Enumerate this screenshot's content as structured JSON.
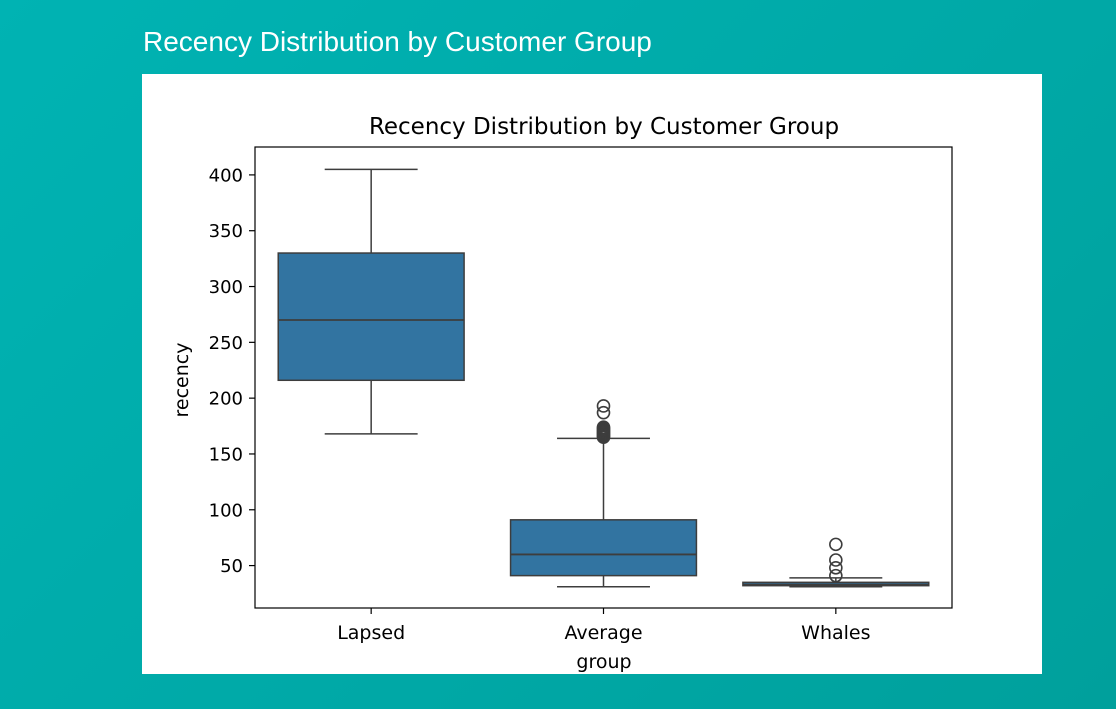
{
  "slide": {
    "title": "Recency Distribution by Customer Group"
  },
  "chart_data": {
    "type": "box",
    "title": "Recency Distribution by Customer Group",
    "xlabel": "group",
    "ylabel": "recency",
    "categories": [
      "Lapsed",
      "Average",
      "Whales"
    ],
    "ylim": [
      12,
      425
    ],
    "yticks": [
      50,
      100,
      150,
      200,
      250,
      300,
      350,
      400
    ],
    "box_color": "#3274a1",
    "boxes": [
      {
        "category": "Lapsed",
        "whisker_low": 168,
        "q1": 216,
        "median": 270,
        "q3": 330,
        "whisker_high": 405,
        "outliers": []
      },
      {
        "category": "Average",
        "whisker_low": 31,
        "q1": 41,
        "median": 60,
        "q3": 91,
        "whisker_high": 164,
        "outliers": [
          165,
          166,
          167,
          168,
          169,
          170,
          171,
          172,
          173,
          174,
          187,
          193
        ]
      },
      {
        "category": "Whales",
        "whisker_low": 31,
        "q1": 32,
        "median": 33,
        "q3": 35,
        "whisker_high": 39,
        "outliers": [
          41,
          48,
          55,
          69
        ]
      }
    ]
  }
}
